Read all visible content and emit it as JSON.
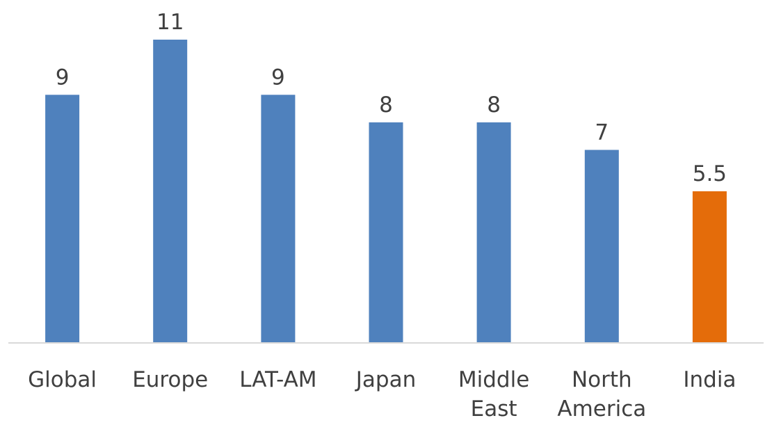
{
  "chart_data": {
    "type": "bar",
    "title": "",
    "xlabel": "",
    "ylabel": "",
    "categories": [
      "Global",
      "Europe",
      "LAT-AM",
      "Japan",
      "Middle East",
      "North America",
      "India"
    ],
    "category_lines": [
      [
        "Global"
      ],
      [
        "Europe"
      ],
      [
        "LAT-AM"
      ],
      [
        "Japan"
      ],
      [
        "Middle",
        "East"
      ],
      [
        "North",
        "America"
      ],
      [
        "India"
      ]
    ],
    "values": [
      9,
      11,
      9,
      8,
      8,
      7,
      5.5
    ],
    "value_labels": [
      "9",
      "11",
      "9",
      "8",
      "8",
      "7",
      "5.5"
    ],
    "ylim": [
      0,
      11
    ],
    "grid": false,
    "legend": "none",
    "colors": {
      "default_bar": "#4F81BD",
      "highlight_bar": "#E46C0A",
      "axis": "#D9D9D9",
      "text": "#404040"
    },
    "highlight_category": "India"
  }
}
